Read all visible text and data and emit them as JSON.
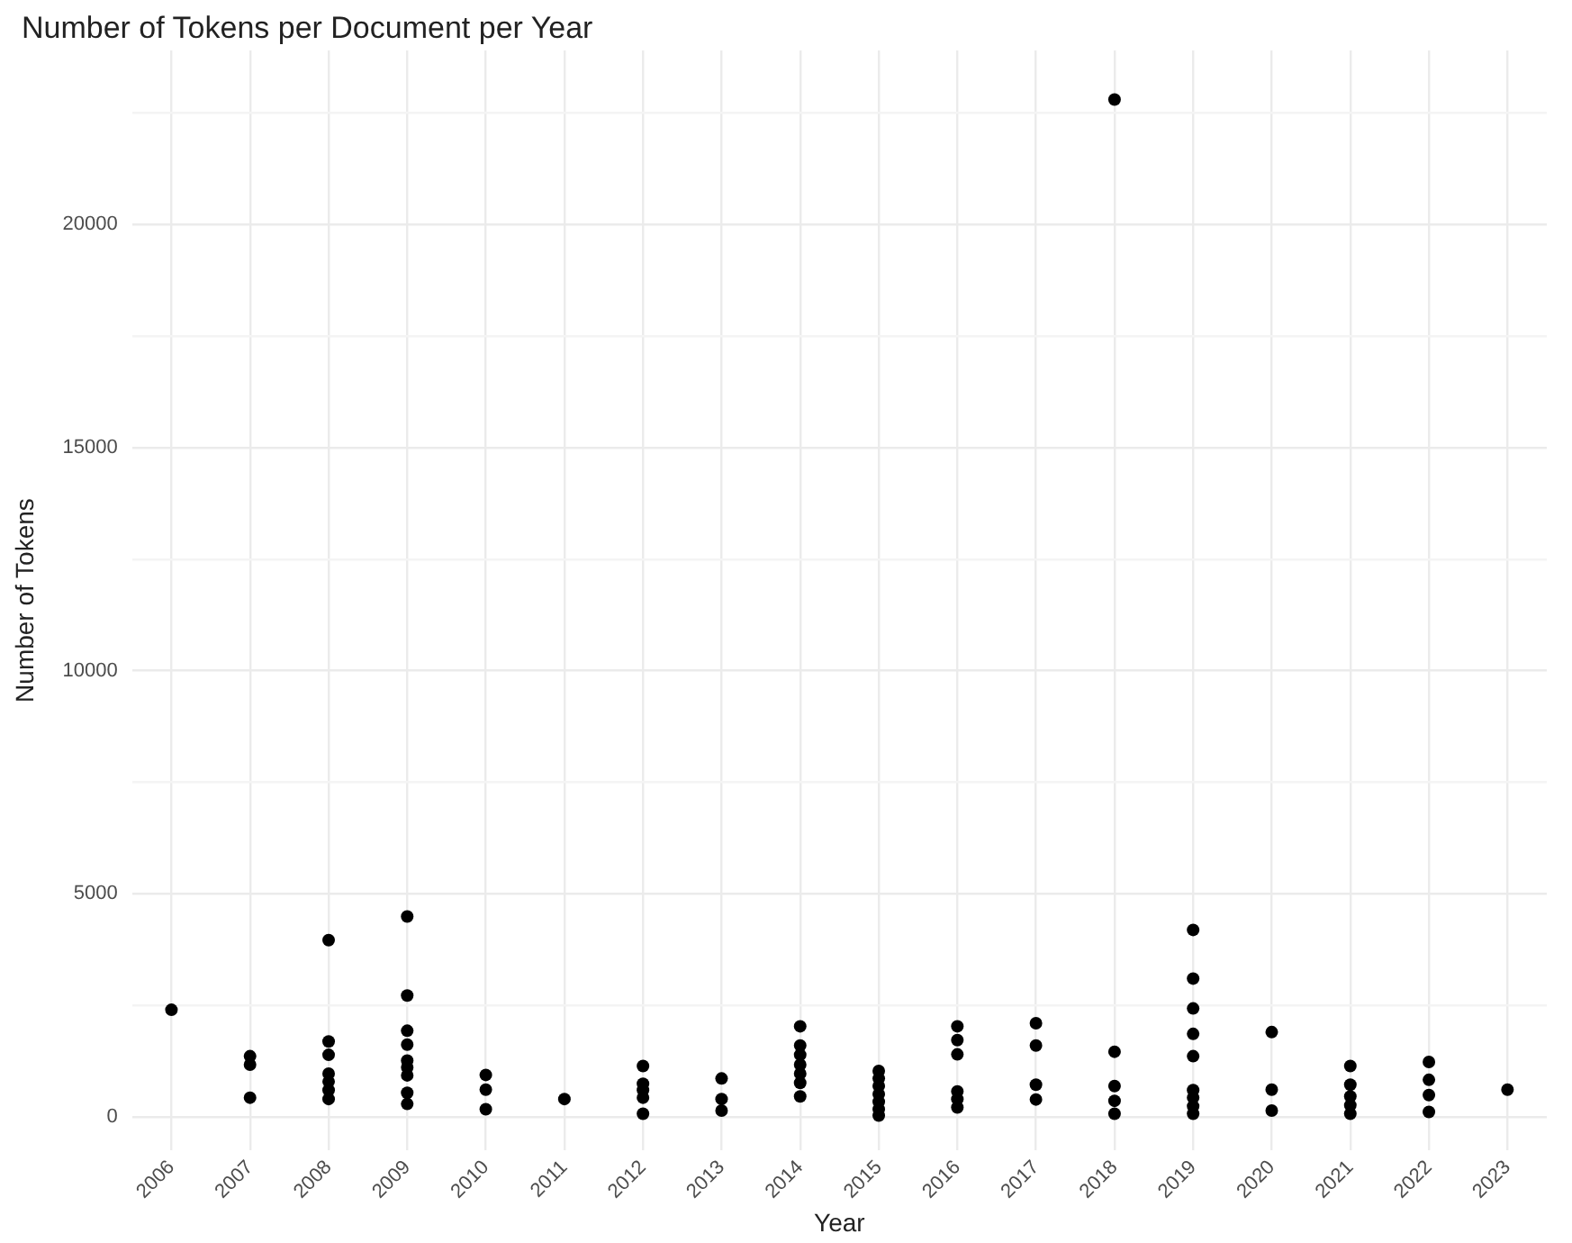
{
  "chart_data": {
    "type": "scatter",
    "title": "Number of Tokens per Document per Year",
    "xlabel": "Year",
    "ylabel": "Number of Tokens",
    "series": [
      {
        "color": "#000000",
        "x": [
          2006,
          2007,
          2007,
          2007,
          2008,
          2008,
          2008,
          2008,
          2008,
          2008,
          2008,
          2009,
          2009,
          2009,
          2009,
          2009,
          2009,
          2009,
          2009,
          2009,
          2010,
          2010,
          2010,
          2011,
          2012,
          2012,
          2012,
          2012,
          2012,
          2013,
          2013,
          2013,
          2014,
          2014,
          2014,
          2014,
          2014,
          2014,
          2014,
          2015,
          2015,
          2015,
          2015,
          2015,
          2015,
          2015,
          2016,
          2016,
          2016,
          2016,
          2016,
          2016,
          2017,
          2017,
          2017,
          2017,
          2018,
          2018,
          2018,
          2018,
          2018,
          2019,
          2019,
          2019,
          2019,
          2019,
          2019,
          2019,
          2019,
          2019,
          2020,
          2020,
          2020,
          2021,
          2021,
          2021,
          2021,
          2021,
          2022,
          2022,
          2022,
          2022,
          2023
        ],
        "values": [
          2400,
          1360,
          1170,
          430,
          3960,
          1690,
          1390,
          970,
          790,
          600,
          400,
          4490,
          2720,
          1930,
          1620,
          1260,
          1110,
          930,
          540,
          290,
          940,
          610,
          170,
          400,
          1140,
          740,
          600,
          430,
          70,
          860,
          400,
          140,
          2030,
          1600,
          1390,
          1170,
          970,
          760,
          460,
          1030,
          860,
          690,
          510,
          340,
          170,
          30,
          2030,
          1720,
          1400,
          570,
          400,
          210,
          2100,
          1600,
          720,
          390,
          22800,
          1460,
          690,
          360,
          70,
          4190,
          3100,
          2430,
          1860,
          1360,
          600,
          430,
          240,
          70,
          1900,
          610,
          140,
          1140,
          720,
          460,
          260,
          70,
          1230,
          830,
          490,
          110,
          610
        ]
      }
    ],
    "xlim": [
      2005.5,
      2023.5
    ],
    "xticks": [
      2006,
      2007,
      2008,
      2009,
      2010,
      2011,
      2012,
      2013,
      2014,
      2015,
      2016,
      2017,
      2018,
      2019,
      2020,
      2021,
      2022,
      2023
    ],
    "ylim": [
      -750,
      23900
    ],
    "yticks": [
      0,
      {
        "value": 2500,
        "label": null
      },
      5000,
      {
        "value": 7500,
        "label": null
      },
      10000,
      {
        "value": 12500,
        "label": null
      },
      15000,
      {
        "value": 17500,
        "label": null
      },
      20000,
      {
        "value": 22500,
        "label": null
      }
    ],
    "grid": true,
    "marker": "circle"
  }
}
